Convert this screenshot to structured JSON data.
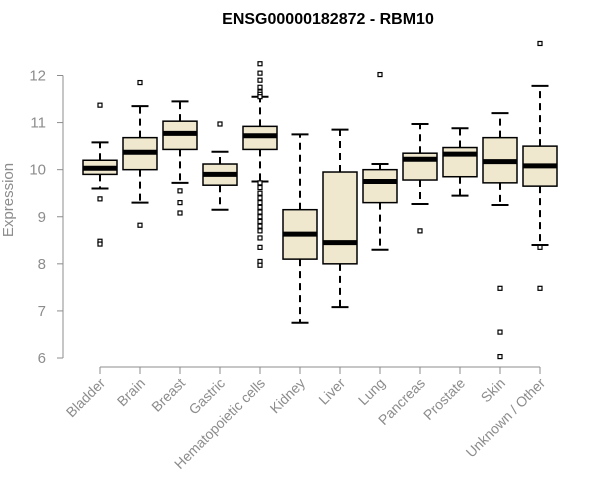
{
  "chart_data": {
    "type": "box",
    "title": "ENSG00000182872 - RBM10",
    "xlabel": "",
    "ylabel": "Expression",
    "ylim": [
      6,
      12.7
    ],
    "yticks": [
      6,
      7,
      8,
      9,
      10,
      11,
      12
    ],
    "grid": false,
    "colors": {
      "box_fill": "#efe8cf",
      "box_stroke": "#000000",
      "axis": "#8c8c8c"
    },
    "categories": [
      "Bladder",
      "Brain",
      "Breast",
      "Gastric",
      "Hematopoietic cells",
      "Kidney",
      "Liver",
      "Lung",
      "Pancreas",
      "Prostate",
      "Skin",
      "Unknown / Other"
    ],
    "boxes": [
      {
        "min": 9.6,
        "q1": 9.9,
        "median": 10.03,
        "q3": 10.2,
        "max": 10.58,
        "outliers": [
          11.37,
          9.38,
          8.48,
          8.42
        ]
      },
      {
        "min": 9.3,
        "q1": 10.0,
        "median": 10.37,
        "q3": 10.68,
        "max": 11.35,
        "outliers": [
          11.85,
          8.82
        ]
      },
      {
        "min": 9.72,
        "q1": 10.43,
        "median": 10.77,
        "q3": 11.03,
        "max": 11.45,
        "outliers": [
          9.55,
          9.3,
          9.08
        ]
      },
      {
        "min": 9.15,
        "q1": 9.67,
        "median": 9.9,
        "q3": 10.12,
        "max": 10.38,
        "outliers": [
          10.97
        ]
      },
      {
        "min": 9.75,
        "q1": 10.43,
        "median": 10.72,
        "q3": 10.92,
        "max": 11.55,
        "outliers": [
          12.25,
          12.05,
          11.9,
          11.75,
          11.65,
          11.6,
          11.55,
          9.72,
          9.62,
          9.5,
          9.4,
          9.3,
          9.2,
          9.1,
          9.0,
          8.9,
          8.8,
          8.7,
          8.55,
          8.35,
          8.05,
          7.97
        ]
      },
      {
        "min": 6.75,
        "q1": 8.1,
        "median": 8.63,
        "q3": 9.15,
        "max": 10.75,
        "outliers": []
      },
      {
        "min": 7.08,
        "q1": 8.0,
        "median": 8.45,
        "q3": 9.95,
        "max": 10.85,
        "outliers": []
      },
      {
        "min": 8.3,
        "q1": 9.3,
        "median": 9.75,
        "q3": 10.0,
        "max": 10.12,
        "outliers": [
          12.02
        ]
      },
      {
        "min": 9.27,
        "q1": 9.78,
        "median": 10.22,
        "q3": 10.35,
        "max": 10.97,
        "outliers": [
          8.7
        ]
      },
      {
        "min": 9.45,
        "q1": 9.85,
        "median": 10.33,
        "q3": 10.47,
        "max": 10.88,
        "outliers": []
      },
      {
        "min": 9.25,
        "q1": 9.72,
        "median": 10.17,
        "q3": 10.68,
        "max": 11.2,
        "outliers": [
          7.48,
          6.55,
          6.03
        ]
      },
      {
        "min": 8.4,
        "q1": 9.65,
        "median": 10.08,
        "q3": 10.5,
        "max": 11.78,
        "outliers": [
          12.68,
          8.35,
          7.48
        ]
      }
    ]
  }
}
